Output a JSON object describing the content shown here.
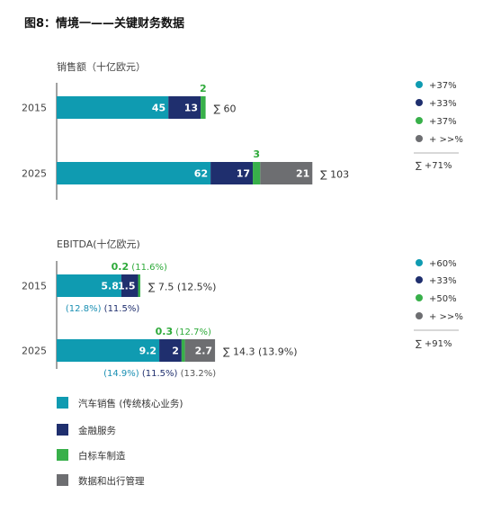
{
  "title": "图8：情境一——关键财务数据",
  "colors": {
    "car": "#0f9bb1",
    "finance": "#1f2f6e",
    "whitelabel": "#38b04a",
    "data": "#6d6e71",
    "below_teal": "#1a8fb3",
    "below_dark": "#1f2f6e",
    "below_gray": "#555555"
  },
  "legend": [
    {
      "key": "car",
      "label": "汽车销售 (传统核心业务)"
    },
    {
      "key": "finance",
      "label": "金融服务"
    },
    {
      "key": "whitelabel",
      "label": "白标车制造"
    },
    {
      "key": "data",
      "label": "数据和出行管理"
    }
  ],
  "chart_data": [
    {
      "type": "bar",
      "title": "销售额（十亿欧元）",
      "orientation": "horizontal-stacked",
      "categories": [
        "2015",
        "2025"
      ],
      "series": [
        {
          "key": "car",
          "values": [
            45,
            62
          ]
        },
        {
          "key": "finance",
          "values": [
            13,
            17
          ]
        },
        {
          "key": "whitelabel",
          "values": [
            2,
            3
          ]
        },
        {
          "key": "data",
          "values": [
            0,
            21
          ]
        }
      ],
      "totals": [
        "∑ 60",
        "∑ 103"
      ],
      "green_labels": [
        "2",
        "3"
      ],
      "below_labels": [
        [],
        []
      ],
      "growth": [
        {
          "key": "car",
          "label": "+37%"
        },
        {
          "key": "finance",
          "label": "+33%"
        },
        {
          "key": "whitelabel",
          "label": "+37%"
        },
        {
          "key": "data",
          "label": "+ >>%"
        }
      ],
      "growth_total": "∑  +71%"
    },
    {
      "type": "bar",
      "title": "EBITDA(十亿欧元)",
      "orientation": "horizontal-stacked",
      "categories": [
        "2015",
        "2025"
      ],
      "series": [
        {
          "key": "car",
          "values": [
            5.8,
            9.2
          ]
        },
        {
          "key": "finance",
          "values": [
            1.5,
            2.0
          ]
        },
        {
          "key": "whitelabel",
          "values": [
            0.2,
            0.3
          ]
        },
        {
          "key": "data",
          "values": [
            0,
            2.7
          ]
        }
      ],
      "totals": [
        "∑ 7.5 (12.5%)",
        "∑ 14.3 (13.9%)"
      ],
      "green_labels": [
        "0.2 (11.6%)",
        "0.3 (12.7%)"
      ],
      "below_labels": [
        [
          {
            "key": "car",
            "text": "(12.8%)"
          },
          {
            "key": "finance",
            "text": "(11.5%)"
          }
        ],
        [
          {
            "key": "car",
            "text": "(14.9%)"
          },
          {
            "key": "finance",
            "text": "(11.5%)"
          },
          {
            "key": "data",
            "text": "(13.2%)"
          }
        ]
      ],
      "growth": [
        {
          "key": "car",
          "label": "+60%"
        },
        {
          "key": "finance",
          "label": "+33%"
        },
        {
          "key": "whitelabel",
          "label": "+50%"
        },
        {
          "key": "data",
          "label": "+ >>%"
        }
      ],
      "growth_total": "∑  +91%"
    }
  ]
}
